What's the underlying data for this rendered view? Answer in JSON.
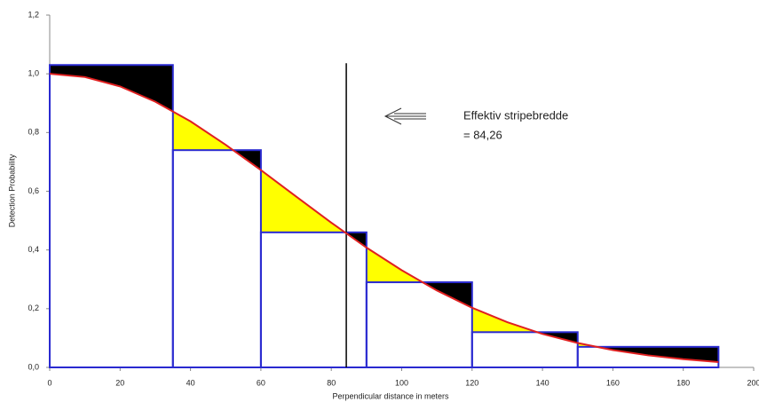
{
  "chart_data": {
    "type": "histogram_fit",
    "x_label": "Perpendicular distance in meters",
    "y_label": "Detection Probability",
    "bins": [
      0,
      35,
      60,
      90,
      120,
      150,
      190
    ],
    "values": [
      1.03,
      0.74,
      0.46,
      0.29,
      0.12,
      0.07
    ],
    "bar_color": "#2a2ad0",
    "curve": {
      "color": "#e02020",
      "x": [
        0,
        10,
        20,
        30,
        40,
        50,
        60,
        70,
        80,
        90,
        100,
        110,
        120,
        130,
        140,
        150,
        160,
        170,
        180,
        190
      ],
      "values": [
        1,
        0.989,
        0.957,
        0.905,
        0.838,
        0.758,
        0.672,
        0.582,
        0.493,
        0.408,
        0.331,
        0.262,
        0.203,
        0.154,
        0.114,
        0.083,
        0.059,
        0.041,
        0.028,
        0.018
      ]
    },
    "excess_color": "#000000",
    "deficit_color": "#ffff00",
    "strip_width": 84.26,
    "annotation": [
      "Effektiv stripebredde",
      "= 84,26"
    ],
    "xlim": [
      0,
      200
    ],
    "xticks": [
      0,
      20,
      40,
      60,
      80,
      100,
      120,
      140,
      160,
      180,
      200
    ],
    "ylim": [
      0,
      1.2
    ],
    "yticks": [
      {
        "value": 0,
        "label": "0,0"
      },
      {
        "value": 0.2,
        "label": "0,2"
      },
      {
        "value": 0.4,
        "label": "0,4"
      },
      {
        "value": 0.6,
        "label": "0,6"
      },
      {
        "value": 0.8,
        "label": "0,8"
      },
      {
        "value": 1.0,
        "label": "1,0"
      },
      {
        "value": 1.2,
        "label": "1,2"
      }
    ]
  }
}
